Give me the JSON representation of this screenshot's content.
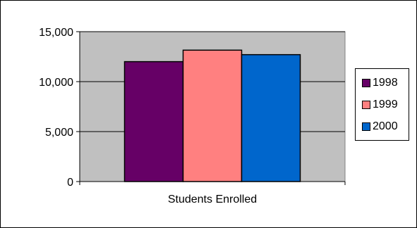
{
  "chart_data": {
    "type": "bar",
    "categories": [
      "Students Enrolled"
    ],
    "series": [
      {
        "name": "1998",
        "values": [
          12000
        ],
        "color": "#660066"
      },
      {
        "name": "1999",
        "values": [
          13150
        ],
        "color": "#FF8080"
      },
      {
        "name": "2000",
        "values": [
          12700
        ],
        "color": "#0066CC"
      }
    ],
    "ylim": [
      0,
      15000
    ],
    "yticks": [
      0,
      5000,
      10000,
      15000
    ],
    "ytick_labels": [
      "0",
      "5,000",
      "10,000",
      "15,000"
    ],
    "grid": true,
    "plot_background": "#C0C0C0",
    "legend": "right"
  }
}
